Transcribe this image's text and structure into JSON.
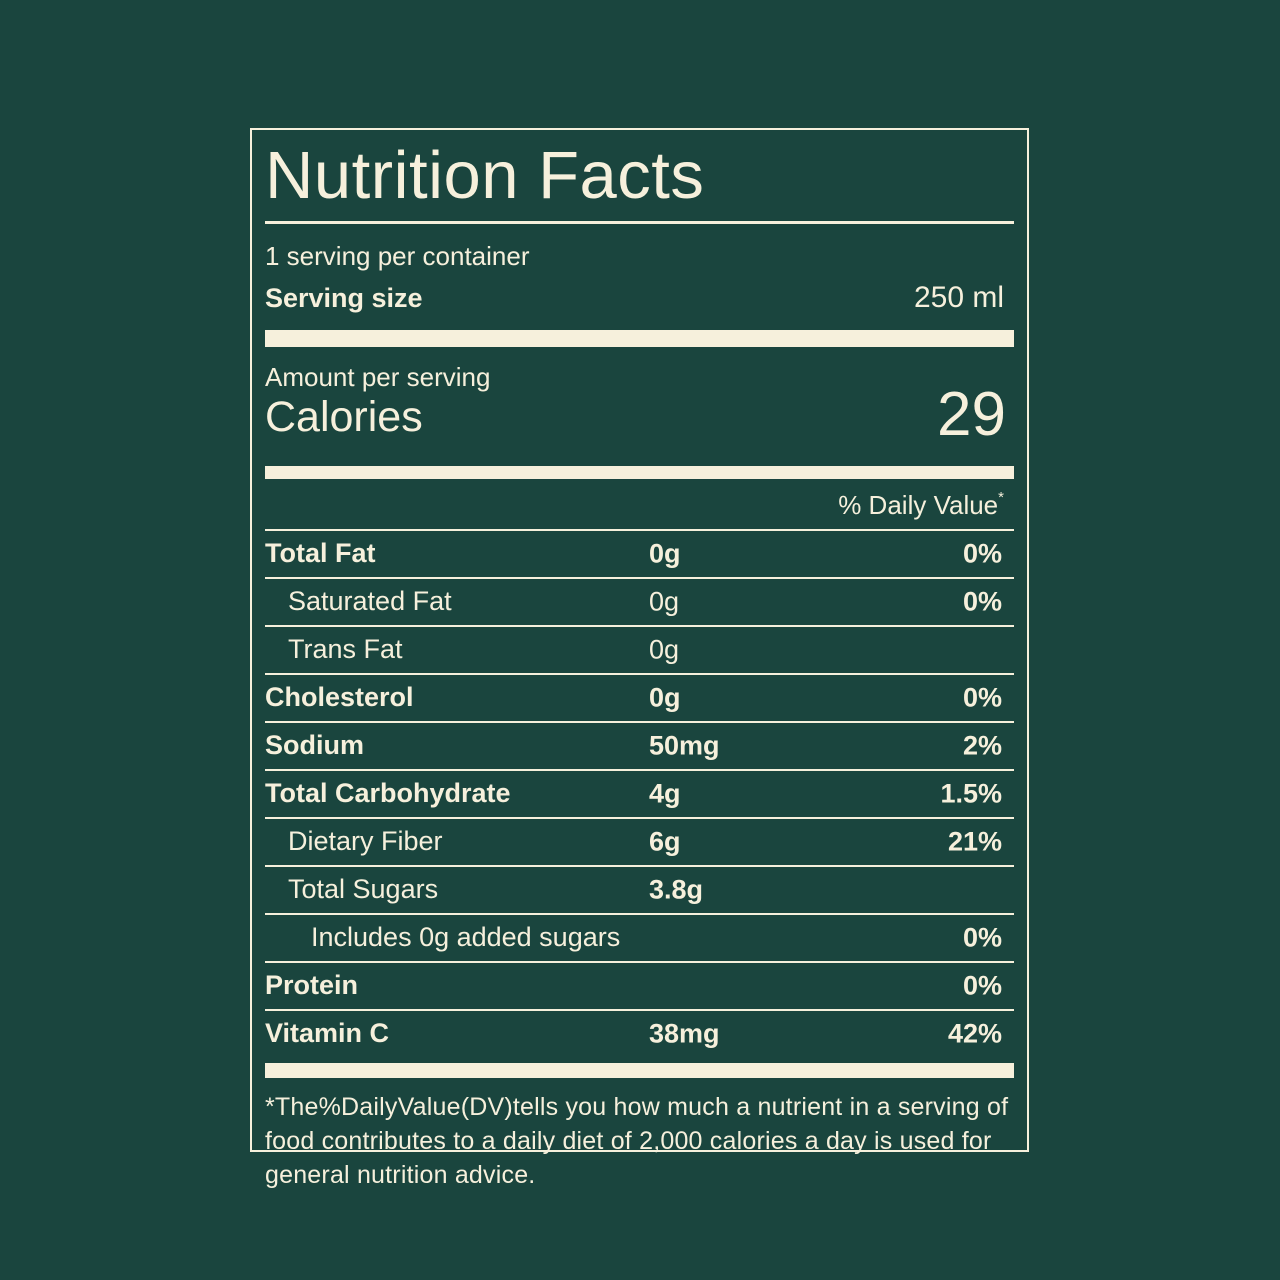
{
  "colors": {
    "background": "#1A453E",
    "foreground": "#F6F0DC"
  },
  "label": {
    "title": "Nutrition Facts",
    "servings_per_container": "1 serving per container",
    "serving_size_label": "Serving size",
    "serving_size_value": "250 ml",
    "amount_per_serving_label": "Amount per serving",
    "calories_label": "Calories",
    "calories_value": "29",
    "daily_value_header": "% Daily Value",
    "daily_value_asterisk": "*",
    "rows": [
      {
        "name": "Total Fat",
        "amount": "0g",
        "dv": "0%",
        "bold": true,
        "indent": 0,
        "amount_bold": true
      },
      {
        "name": "Saturated Fat",
        "amount": "0g",
        "dv": "0%",
        "bold": false,
        "indent": 1,
        "amount_bold": false
      },
      {
        "name": "Trans Fat",
        "amount": "0g",
        "dv": "",
        "bold": false,
        "indent": 1,
        "amount_bold": false
      },
      {
        "name": "Cholesterol",
        "amount": "0g",
        "dv": "0%",
        "bold": true,
        "indent": 0,
        "amount_bold": true
      },
      {
        "name": "Sodium",
        "amount": "50mg",
        "dv": "2%",
        "bold": true,
        "indent": 0,
        "amount_bold": true
      },
      {
        "name": "Total Carbohydrate",
        "amount": "4g",
        "dv": "1.5%",
        "bold": true,
        "indent": 0,
        "amount_bold": true
      },
      {
        "name": "Dietary Fiber",
        "amount": "6g",
        "dv": "21%",
        "bold": false,
        "indent": 1,
        "amount_bold": true
      },
      {
        "name": "Total Sugars",
        "amount": "3.8g",
        "dv": "",
        "bold": false,
        "indent": 1,
        "amount_bold": true
      },
      {
        "name": "Includes 0g added sugars",
        "amount": "",
        "dv": "0%",
        "bold": false,
        "indent": 2,
        "amount_bold": false
      },
      {
        "name": "Protein",
        "amount": "",
        "dv": "0%",
        "bold": true,
        "indent": 0,
        "amount_bold": false
      },
      {
        "name": "Vitamin C",
        "amount": "38mg",
        "dv": "42%",
        "bold": true,
        "indent": 0,
        "amount_bold": true
      }
    ],
    "footnote": "*The%DailyValue(DV)tells you how much a nutrient in a serving of food contributes to a daily diet of 2,000 calories a day is used for general nutrition advice."
  }
}
